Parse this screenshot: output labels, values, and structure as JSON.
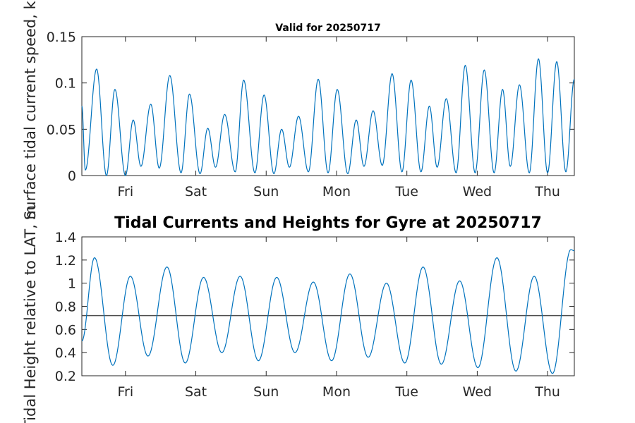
{
  "colors": {
    "series": "#0072BD",
    "axis": "#262626",
    "reference_line": "#4d4d4d"
  },
  "chart_data": [
    {
      "type": "line",
      "title": "Valid for 20250717",
      "ylabel": "Surface tidal current speed, kn",
      "x_ticks": [
        "Fri",
        "Sat",
        "Sun",
        "Mon",
        "Tue",
        "Wed",
        "Thu"
      ],
      "xlim": [
        -0.62,
        6.38
      ],
      "ylim": [
        0,
        0.15
      ],
      "y_ticks": [
        "0",
        "0.05",
        "0.1",
        "0.15"
      ],
      "y_tick_values": [
        0,
        0.05,
        0.1,
        0.15
      ],
      "series": [
        {
          "values": [
            [
              -0.62,
              0.075
            ],
            [
              -0.57,
              0.006
            ],
            [
              -0.41,
              0.115
            ],
            [
              -0.27,
              0.0
            ],
            [
              -0.15,
              0.093
            ],
            [
              0.0,
              0.0
            ],
            [
              0.11,
              0.06
            ],
            [
              0.22,
              0.01
            ],
            [
              0.36,
              0.077
            ],
            [
              0.48,
              0.008
            ],
            [
              0.63,
              0.108
            ],
            [
              0.79,
              0.003
            ],
            [
              0.91,
              0.088
            ],
            [
              1.06,
              0.002
            ],
            [
              1.17,
              0.051
            ],
            [
              1.28,
              0.009
            ],
            [
              1.41,
              0.066
            ],
            [
              1.56,
              0.004
            ],
            [
              1.68,
              0.103
            ],
            [
              1.84,
              0.003
            ],
            [
              1.97,
              0.087
            ],
            [
              2.11,
              0.002
            ],
            [
              2.22,
              0.05
            ],
            [
              2.33,
              0.009
            ],
            [
              2.46,
              0.064
            ],
            [
              2.6,
              0.004
            ],
            [
              2.74,
              0.104
            ],
            [
              2.88,
              0.003
            ],
            [
              3.01,
              0.093
            ],
            [
              3.16,
              0.002
            ],
            [
              3.28,
              0.06
            ],
            [
              3.39,
              0.01
            ],
            [
              3.52,
              0.07
            ],
            [
              3.65,
              0.011
            ],
            [
              3.79,
              0.11
            ],
            [
              3.93,
              0.004
            ],
            [
              4.06,
              0.103
            ],
            [
              4.2,
              0.004
            ],
            [
              4.32,
              0.075
            ],
            [
              4.43,
              0.009
            ],
            [
              4.56,
              0.083
            ],
            [
              4.7,
              0.003
            ],
            [
              4.83,
              0.119
            ],
            [
              4.97,
              0.003
            ],
            [
              5.1,
              0.114
            ],
            [
              5.24,
              0.003
            ],
            [
              5.36,
              0.093
            ],
            [
              5.47,
              0.01
            ],
            [
              5.6,
              0.098
            ],
            [
              5.74,
              0.003
            ],
            [
              5.87,
              0.126
            ],
            [
              6.0,
              0.003
            ],
            [
              6.13,
              0.123
            ],
            [
              6.26,
              0.004
            ],
            [
              6.38,
              0.104
            ]
          ]
        }
      ]
    },
    {
      "type": "line",
      "title": "Tidal Currents and Heights for Gyre at 20250717",
      "ylabel": "Tidal Height relative to LAT, m",
      "x_ticks": [
        "Fri",
        "Sat",
        "Sun",
        "Mon",
        "Tue",
        "Wed",
        "Thu"
      ],
      "xlim": [
        -0.62,
        6.38
      ],
      "ylim": [
        0.2,
        1.4
      ],
      "y_ticks": [
        "0.2",
        "0.4",
        "0.6",
        "0.8",
        "1",
        "1.2",
        "1.4"
      ],
      "y_tick_values": [
        0.2,
        0.4,
        0.6,
        0.8,
        1.0,
        1.2,
        1.4
      ],
      "reference_line": 0.72,
      "series": [
        {
          "values": [
            [
              -0.62,
              0.5
            ],
            [
              -0.44,
              1.22
            ],
            [
              -0.18,
              0.29
            ],
            [
              0.07,
              1.06
            ],
            [
              0.32,
              0.37
            ],
            [
              0.59,
              1.14
            ],
            [
              0.85,
              0.31
            ],
            [
              1.11,
              1.05
            ],
            [
              1.37,
              0.4
            ],
            [
              1.63,
              1.06
            ],
            [
              1.89,
              0.33
            ],
            [
              2.15,
              1.05
            ],
            [
              2.41,
              0.4
            ],
            [
              2.67,
              1.01
            ],
            [
              2.93,
              0.33
            ],
            [
              3.19,
              1.08
            ],
            [
              3.45,
              0.36
            ],
            [
              3.71,
              1.0
            ],
            [
              3.97,
              0.31
            ],
            [
              4.23,
              1.14
            ],
            [
              4.49,
              0.3
            ],
            [
              4.75,
              1.02
            ],
            [
              5.01,
              0.27
            ],
            [
              5.28,
              1.22
            ],
            [
              5.55,
              0.24
            ],
            [
              5.81,
              1.06
            ],
            [
              6.07,
              0.22
            ],
            [
              6.33,
              1.29
            ],
            [
              6.38,
              1.28
            ]
          ]
        }
      ]
    }
  ]
}
